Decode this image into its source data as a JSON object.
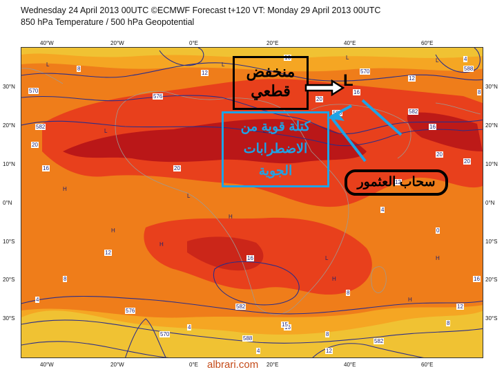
{
  "header": {
    "line1": "Wednesday 24 April 2013 00UTC ©ECMWF Forecast t+120 VT: Monday 29 April 2013 00UTC",
    "line2": "850 hPa Temperature / 500 hPa Geopotential"
  },
  "axes": {
    "lon_labels": [
      "40°W",
      "20°W",
      "0°E",
      "20°E",
      "40°E",
      "60°E"
    ],
    "lat_labels_left": [
      "30°N",
      "20°N",
      "10°N",
      "0°N",
      "10°S",
      "20°S",
      "30°S"
    ],
    "lat_labels_right": [
      "30°N",
      "20°N",
      "10°N",
      "0°N",
      "10°S",
      "20°S",
      "30°S"
    ]
  },
  "colors": {
    "cold_band": "#f0c233",
    "cool": "#f5a623",
    "mild": "#ef7d1a",
    "warm": "#e8401c",
    "hot": "#b21018",
    "contour": "#2a2d8a",
    "annotation_blue": "#1ea3e6"
  },
  "contour_labels": [
    "570",
    "576",
    "582",
    "588",
    "570",
    "582",
    "588",
    "582",
    "588",
    "576",
    "570",
    "582",
    "16",
    "20",
    "16",
    "20",
    "20",
    "16",
    "12",
    "8",
    "4",
    "12",
    "15",
    "16",
    "20",
    "8",
    "12",
    "16",
    "12",
    "8",
    "4",
    "4",
    "8",
    "12",
    "16",
    "16",
    "20",
    "12",
    "8",
    "4",
    "0",
    "4",
    "8"
  ],
  "pressure_markers": [
    "L",
    "L",
    "L",
    "L",
    "L",
    "L",
    "L",
    "H",
    "H",
    "H",
    "H",
    "H",
    "H",
    "H",
    "L"
  ],
  "annotations": {
    "cutoff_low_text": "منخفض\nقطعي",
    "low_marker": "L",
    "instability_text": "كتلة قوية من\nالاضطرابات\nالجوية",
    "cumulonimbus_text": "سحاب العثمور"
  },
  "watermark": "albrari.com"
}
